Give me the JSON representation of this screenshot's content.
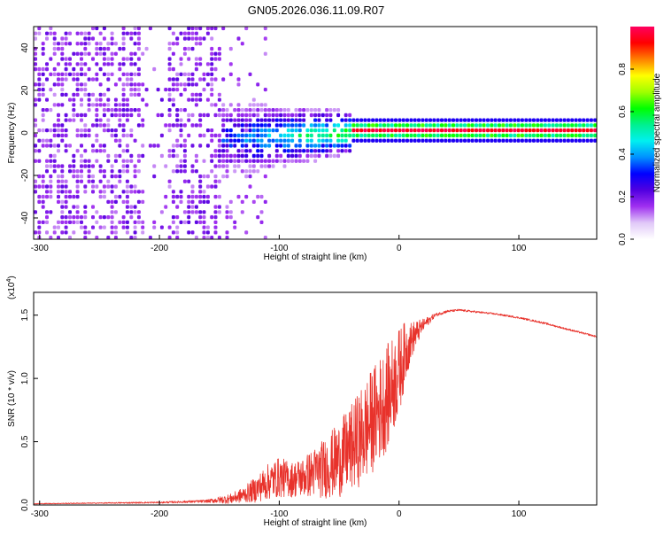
{
  "figure_title": "GN05.2026.036.11.09.R07",
  "colors": {
    "snr_line": "#e8322b",
    "background": "#ffffff",
    "axis": "#000000"
  },
  "chart_data": [
    {
      "type": "heatmap",
      "name": "spectrogram",
      "xlabel": "Height of straight line (km)",
      "ylabel": "Frequency (Hz)",
      "xlim": [
        -305,
        165
      ],
      "ylim": [
        -50,
        50
      ],
      "x_ticks": [
        -300,
        -200,
        -100,
        0,
        100
      ],
      "y_ticks": [
        -40,
        -20,
        0,
        20,
        40
      ],
      "colorbar": {
        "label": "Normalized spectral amplitude",
        "range": [
          0,
          1
        ],
        "ticks": [
          0.0,
          0.2,
          0.4,
          0.6,
          0.8
        ],
        "tick_labels": [
          "0.0",
          "0.2",
          "0.4",
          "0.6",
          "0.8"
        ],
        "colors": [
          "#ffffff",
          "#e0c8f8",
          "#a030f0",
          "#5000e0",
          "#0000ff",
          "#0090ff",
          "#00f0f0",
          "#00f090",
          "#00ff00",
          "#a0ff00",
          "#ffff00",
          "#ff8000",
          "#ff0000",
          "#ff0060"
        ]
      },
      "features": [
        {
          "region": "-305 to -150 km",
          "description": "broadband noise, amplitude ~0.1-0.2"
        },
        {
          "region": "-150 to -40 km",
          "description": "signal emerging near 0 Hz, spread about 15 Hz"
        },
        {
          "region": "-40 to 165 km",
          "description": "narrow line at 0 Hz, amplitude ~1.0"
        }
      ]
    },
    {
      "type": "line",
      "name": "snr",
      "xlabel": "Height of straight line (km)",
      "ylabel": "SNR (10 * v/v)",
      "y_multiplier": "(x10",
      "y_multiplier_exp": "4",
      "y_multiplier_close": ")",
      "xlim": [
        -305,
        165
      ],
      "ylim": [
        0,
        1.68
      ],
      "x_ticks": [
        -300,
        -200,
        -100,
        0,
        100
      ],
      "y_ticks": [
        0.0,
        0.5,
        1.0,
        1.5
      ],
      "y_tick_labels": [
        "0.0",
        "0.5",
        "1.0",
        "1.5"
      ],
      "series": [
        {
          "name": "SNR",
          "x": [
            -305,
            -250,
            -200,
            -160,
            -140,
            -130,
            -120,
            -110,
            -100,
            -90,
            -80,
            -70,
            -60,
            -50,
            -40,
            -30,
            -20,
            -10,
            0,
            5,
            10,
            20,
            30,
            40,
            50,
            60,
            80,
            100,
            120,
            140,
            165
          ],
          "y": [
            0.01,
            0.015,
            0.02,
            0.03,
            0.05,
            0.08,
            0.12,
            0.18,
            0.22,
            0.2,
            0.22,
            0.26,
            0.3,
            0.36,
            0.45,
            0.56,
            0.7,
            0.85,
            1.05,
            1.2,
            1.3,
            1.42,
            1.5,
            1.53,
            1.54,
            1.53,
            1.51,
            1.48,
            1.44,
            1.39,
            1.33
          ],
          "noise": [
            0.003,
            0.004,
            0.006,
            0.012,
            0.04,
            0.06,
            0.1,
            0.14,
            0.16,
            0.14,
            0.16,
            0.2,
            0.25,
            0.3,
            0.34,
            0.4,
            0.42,
            0.42,
            0.35,
            0.25,
            0.15,
            0.05,
            0.015,
            0.01,
            0.008,
            0.008,
            0.007,
            0.007,
            0.007,
            0.007,
            0.007
          ]
        }
      ]
    }
  ]
}
